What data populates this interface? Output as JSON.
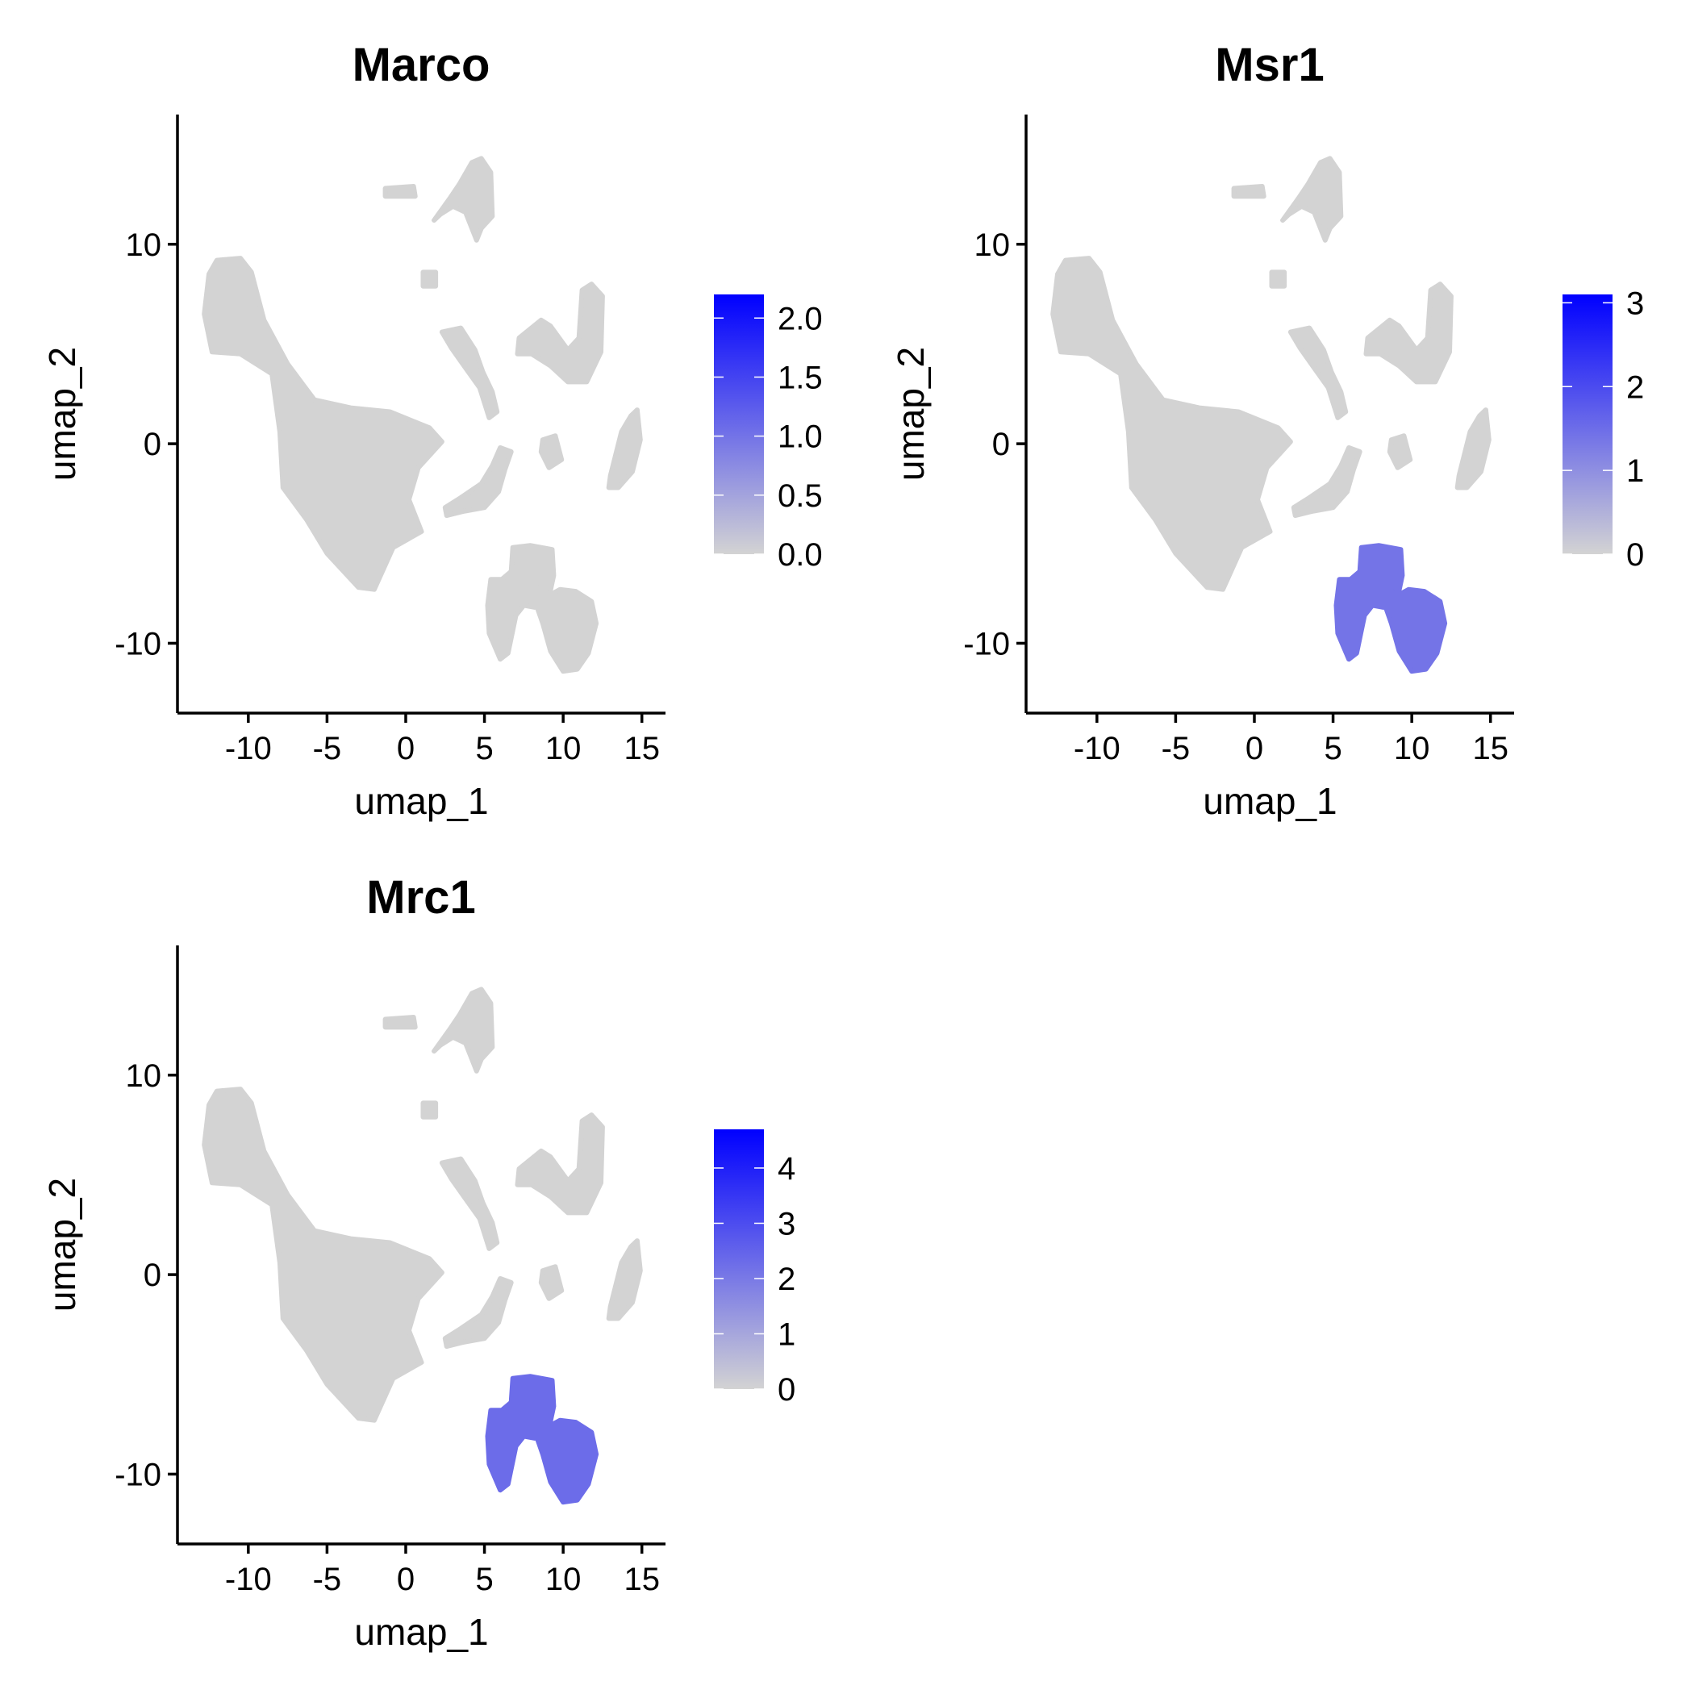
{
  "chart_data": [
    {
      "type": "scatter",
      "title": "Marco",
      "xlabel": "umap_1",
      "ylabel": "umap_2",
      "xlim": [
        -14.5,
        16.5
      ],
      "ylim": [
        -13.5,
        16.5
      ],
      "xticks": [
        -10,
        -5,
        0,
        5,
        10,
        15
      ],
      "xtick_labels": [
        "-10",
        "-5",
        "0",
        "5",
        "10",
        "15"
      ],
      "yticks": [
        -10,
        0,
        10
      ],
      "ytick_labels": [
        "-10",
        "0",
        "10"
      ],
      "grid": false,
      "colorbar": {
        "min": 0,
        "max": 2.2,
        "ticks": [
          0,
          0.5,
          1.0,
          1.5,
          2.0
        ],
        "tick_labels": [
          "0.0",
          "0.5",
          "1.0",
          "1.5",
          "2.0"
        ],
        "low_color": "#d3d3d3",
        "high_color": "#0000ff"
      },
      "expression": {
        "macrophage_cluster": 0.0,
        "background": 0.0
      }
    },
    {
      "type": "scatter",
      "title": "Msr1",
      "xlabel": "umap_1",
      "ylabel": "umap_2",
      "xlim": [
        -14.5,
        16.5
      ],
      "ylim": [
        -13.5,
        16.5
      ],
      "xticks": [
        -10,
        -5,
        0,
        5,
        10,
        15
      ],
      "xtick_labels": [
        "-10",
        "-5",
        "0",
        "5",
        "10",
        "15"
      ],
      "yticks": [
        -10,
        0,
        10
      ],
      "ytick_labels": [
        "-10",
        "0",
        "10"
      ],
      "grid": false,
      "colorbar": {
        "min": 0,
        "max": 3.1,
        "ticks": [
          0,
          1,
          2,
          3
        ],
        "tick_labels": [
          "0",
          "1",
          "2",
          "3"
        ],
        "low_color": "#d3d3d3",
        "high_color": "#0000ff"
      },
      "expression": {
        "macrophage_cluster": 1.4,
        "background": 0.0
      }
    },
    {
      "type": "scatter",
      "title": "Mrc1",
      "xlabel": "umap_1",
      "ylabel": "umap_2",
      "xlim": [
        -14.5,
        16.5
      ],
      "ylim": [
        -13.5,
        16.5
      ],
      "xticks": [
        -10,
        -5,
        0,
        5,
        10,
        15
      ],
      "xtick_labels": [
        "-10",
        "-5",
        "0",
        "5",
        "10",
        "15"
      ],
      "yticks": [
        -10,
        0,
        10
      ],
      "ytick_labels": [
        "-10",
        "0",
        "10"
      ],
      "grid": false,
      "colorbar": {
        "min": 0,
        "max": 4.7,
        "ticks": [
          0,
          1,
          2,
          3,
          4
        ],
        "tick_labels": [
          "0",
          "1",
          "2",
          "3",
          "4"
        ],
        "low_color": "#d3d3d3",
        "high_color": "#0000ff"
      },
      "expression": {
        "macrophage_cluster": 2.3,
        "background": 0.0
      }
    }
  ]
}
